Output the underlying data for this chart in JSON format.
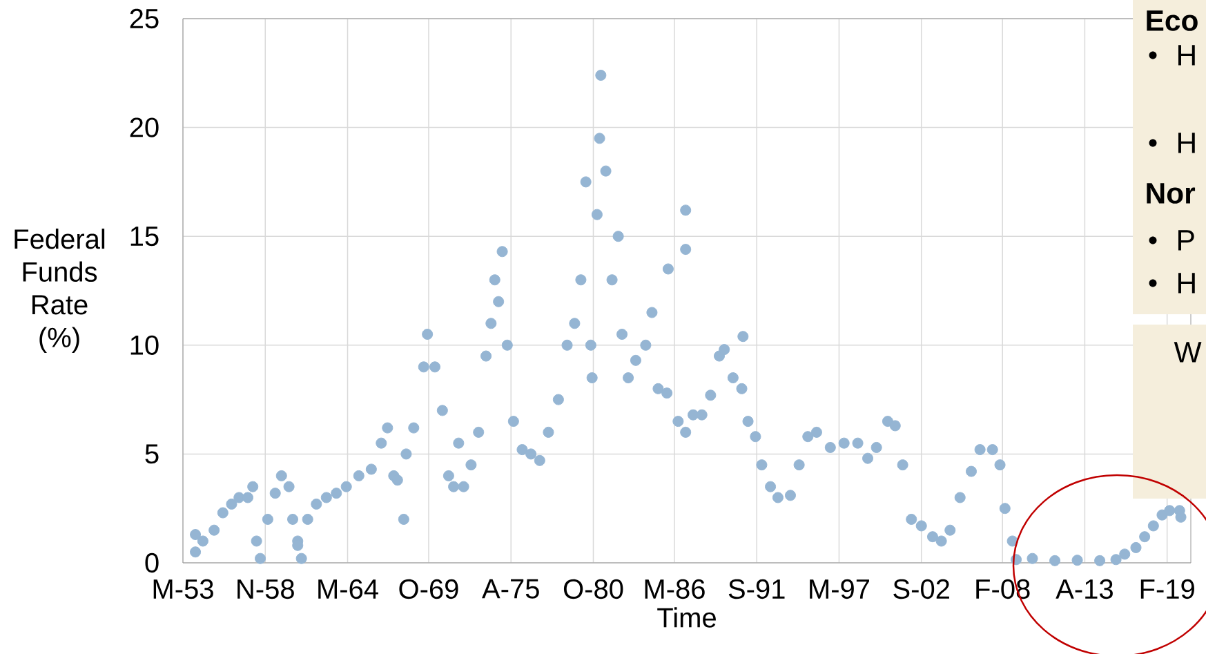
{
  "chart_data": {
    "type": "scatter",
    "xlabel": "Time",
    "ylabel": "Federal Funds Rate (%)",
    "xlim": [
      "1953-05",
      "2020-09"
    ],
    "ylim": [
      0,
      25
    ],
    "yticks": [
      0,
      5,
      10,
      15,
      20,
      25
    ],
    "xticks": [
      {
        "value": "1953-05",
        "label": "M-53"
      },
      {
        "value": "1958-11",
        "label": "N-58"
      },
      {
        "value": "1964-05",
        "label": "M-64"
      },
      {
        "value": "1969-10",
        "label": "O-69"
      },
      {
        "value": "1975-04",
        "label": "A-75"
      },
      {
        "value": "1980-10",
        "label": "O-80"
      },
      {
        "value": "1986-03",
        "label": "M-86"
      },
      {
        "value": "1991-09",
        "label": "S-91"
      },
      {
        "value": "1997-03",
        "label": "M-97"
      },
      {
        "value": "2002-09",
        "label": "S-02"
      },
      {
        "value": "2008-02",
        "label": "F-08"
      },
      {
        "value": "2013-08",
        "label": "A-13"
      },
      {
        "value": "2019-02",
        "label": "F-19"
      }
    ],
    "grid": true,
    "marker": "circle",
    "annotations": [
      "Eco",
      "H",
      "H",
      "Nor",
      "P",
      "H",
      "W"
    ],
    "series": [
      {
        "color": "#95b5d3",
        "x": [
          "1954-03",
          "1954-03",
          "1954-09",
          "1955-06",
          "1956-01",
          "1956-08",
          "1957-02",
          "1957-09",
          "1958-01",
          "1958-04",
          "1958-07",
          "1959-01",
          "1959-07",
          "1959-12",
          "1960-06",
          "1960-09",
          "1961-01",
          "1961-04",
          "1961-09",
          "1962-04",
          "1962-12",
          "1963-08",
          "1964-04",
          "1965-02",
          "1965-12",
          "1966-08",
          "1967-01",
          "1967-06",
          "1967-09",
          "1968-04",
          "1968-10",
          "1969-06",
          "1969-09",
          "1970-03",
          "1970-09",
          "1971-02",
          "1971-06",
          "1971-10",
          "1972-02",
          "1972-08",
          "1973-02",
          "1973-08",
          "1973-12",
          "1974-06",
          "1974-09",
          "1975-01",
          "1975-06",
          "1976-01",
          "1976-08",
          "1977-03",
          "1977-10",
          "1978-06",
          "1979-01",
          "1979-07",
          "1979-12",
          "1980-04",
          "1980-08",
          "1980-09",
          "1981-01",
          "1981-03",
          "1981-04",
          "1981-08",
          "1982-01",
          "1982-06",
          "1982-09",
          "1983-02",
          "1983-08",
          "1984-04",
          "1984-09",
          "1985-02",
          "1985-09",
          "1986-06",
          "1986-12",
          "1987-06",
          "1988-01",
          "1988-08",
          "1989-03",
          "1989-07",
          "1990-02",
          "1990-09",
          "1991-02",
          "1991-08",
          "1992-01",
          "1992-08",
          "1993-02",
          "1993-12",
          "1994-07",
          "1995-02",
          "1995-09",
          "1996-08",
          "1997-07",
          "1998-06",
          "1999-02",
          "1999-09",
          "2000-06",
          "2000-12",
          "2001-06",
          "2002-01",
          "2002-09",
          "2003-06",
          "2004-01",
          "2004-08",
          "2005-04",
          "2006-01",
          "2006-08",
          "2007-06",
          "2007-12",
          "2008-04",
          "2008-10",
          "2009-01",
          "2010-02",
          "2011-08",
          "2013-02",
          "2014-08",
          "2015-09",
          "2016-04",
          "2017-01",
          "2017-08",
          "2018-03",
          "2018-10",
          "2019-04",
          "2019-12",
          "2020-01",
          "1986-12",
          "1986-12",
          "1985-10",
          "1990-10",
          "1968-02",
          "1974-03",
          "1961-01"
        ],
        "values": [
          0.5,
          1.3,
          1.0,
          1.5,
          2.3,
          2.7,
          3.0,
          3.0,
          3.5,
          1.0,
          0.2,
          2.0,
          3.2,
          4.0,
          3.5,
          2.0,
          1.0,
          0.2,
          2.0,
          2.7,
          3.0,
          3.2,
          3.5,
          4.0,
          4.3,
          5.5,
          6.2,
          4.0,
          3.8,
          5.0,
          6.2,
          9.0,
          10.5,
          9.0,
          7.0,
          4.0,
          3.5,
          5.5,
          3.5,
          4.5,
          6.0,
          9.5,
          11.0,
          12.0,
          14.3,
          10.0,
          6.5,
          5.2,
          5.0,
          4.7,
          6.0,
          7.5,
          10.0,
          11.0,
          13.0,
          17.5,
          10.0,
          8.5,
          16.0,
          19.5,
          22.4,
          18.0,
          13.0,
          15.0,
          10.5,
          8.5,
          9.3,
          10.0,
          11.5,
          8.0,
          7.8,
          6.5,
          6.0,
          6.8,
          6.8,
          7.7,
          9.5,
          9.8,
          8.5,
          8.0,
          6.5,
          5.8,
          4.5,
          3.5,
          3.0,
          3.1,
          4.5,
          5.8,
          6.0,
          5.3,
          5.5,
          5.5,
          4.8,
          5.3,
          6.5,
          6.3,
          4.5,
          2.0,
          1.7,
          1.2,
          1.0,
          1.5,
          3.0,
          4.2,
          5.2,
          5.2,
          4.5,
          2.5,
          1.0,
          0.15,
          0.2,
          0.1,
          0.12,
          0.1,
          0.15,
          0.4,
          0.7,
          1.2,
          1.7,
          2.2,
          2.4,
          2.4,
          2.1,
          16.2,
          14.4,
          13.5,
          10.4,
          2.0,
          13.0,
          0.8
        ]
      }
    ]
  }
}
